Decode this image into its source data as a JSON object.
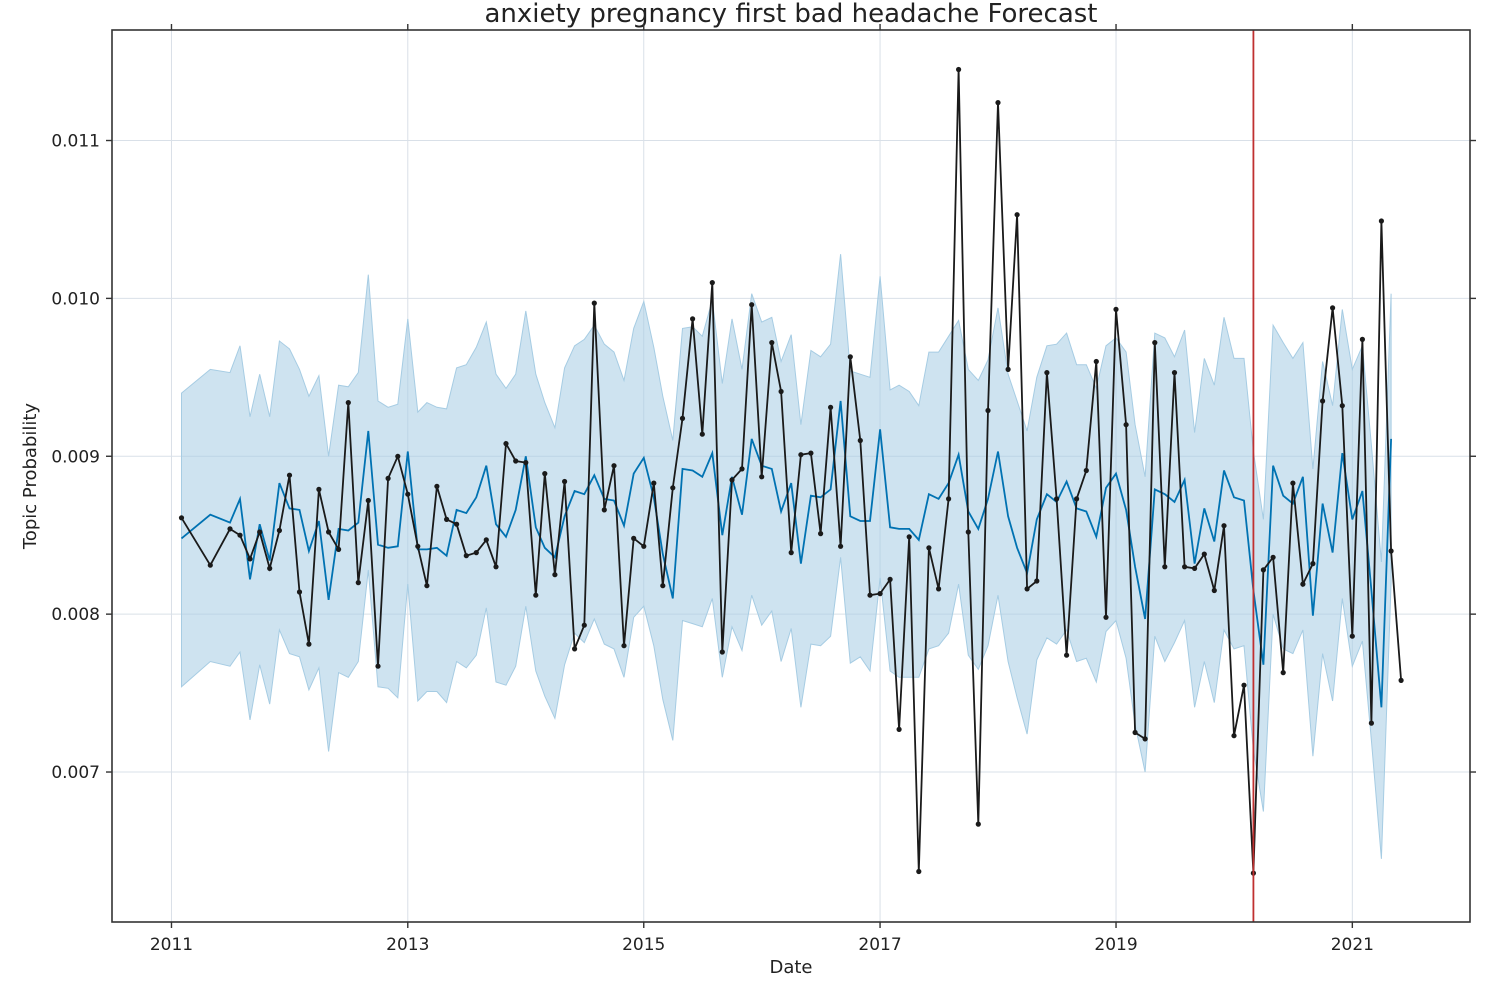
{
  "chart_data": {
    "type": "line",
    "title": "anxiety pregnancy first bad headache Forecast",
    "xlabel": "Date",
    "ylabel": "Topic Probability",
    "x_ticks": [
      "2011",
      "2013",
      "2015",
      "2017",
      "2019",
      "2021"
    ],
    "y_ticks": [
      "0.007",
      "0.008",
      "0.009",
      "0.010",
      "0.011"
    ],
    "xlim": [
      "2010-07-01",
      "2021-12-31"
    ],
    "ylim": [
      0.00605,
      0.0117
    ],
    "grid": true,
    "legend": "none",
    "colors": {
      "observed": "#1a1a1a",
      "forecast": "#0072b2",
      "interval": "#a6cce3",
      "changepoint": "#c03030",
      "grid": "#d9e0e8",
      "frame": "#333333"
    },
    "changepoint_date": "2020-03-01",
    "series": [
      {
        "role": "observed",
        "x": [
          "2011-02-01",
          "2011-05-01",
          "2011-07-01",
          "2011-08-01",
          "2011-09-01",
          "2011-10-01",
          "2011-11-01",
          "2011-12-01",
          "2012-01-01",
          "2012-02-01",
          "2012-03-01",
          "2012-04-01",
          "2012-05-01",
          "2012-06-01",
          "2012-07-01",
          "2012-08-01",
          "2012-09-01",
          "2012-10-01",
          "2012-11-01",
          "2012-12-01",
          "2013-01-01",
          "2013-02-01",
          "2013-03-01",
          "2013-04-01",
          "2013-05-01",
          "2013-06-01",
          "2013-07-01",
          "2013-08-01",
          "2013-09-01",
          "2013-10-01",
          "2013-11-01",
          "2013-12-01",
          "2014-01-01",
          "2014-02-01",
          "2014-03-01",
          "2014-04-01",
          "2014-05-01",
          "2014-06-01",
          "2014-07-01",
          "2014-08-01",
          "2014-09-01",
          "2014-10-01",
          "2014-11-01",
          "2014-12-01",
          "2015-01-01",
          "2015-02-01",
          "2015-03-01",
          "2015-04-01",
          "2015-05-01",
          "2015-06-01",
          "2015-07-01",
          "2015-08-01",
          "2015-09-01",
          "2015-10-01",
          "2015-11-01",
          "2015-12-01",
          "2016-01-01",
          "2016-02-01",
          "2016-03-01",
          "2016-04-01",
          "2016-05-01",
          "2016-06-01",
          "2016-07-01",
          "2016-08-01",
          "2016-09-01",
          "2016-10-01",
          "2016-11-01",
          "2016-12-01",
          "2017-01-01",
          "2017-02-01",
          "2017-03-01",
          "2017-04-01",
          "2017-05-01",
          "2017-06-01",
          "2017-07-01",
          "2017-08-01",
          "2017-09-01",
          "2017-10-01",
          "2017-11-01",
          "2017-12-01",
          "2018-01-01",
          "2018-02-01",
          "2018-03-01",
          "2018-04-01",
          "2018-05-01",
          "2018-06-01",
          "2018-07-01",
          "2018-08-01",
          "2018-09-01",
          "2018-10-01",
          "2018-11-01",
          "2018-12-01",
          "2019-01-01",
          "2019-02-01",
          "2019-03-01",
          "2019-04-01",
          "2019-05-01",
          "2019-06-01",
          "2019-07-01",
          "2019-08-01",
          "2019-09-01",
          "2019-10-01",
          "2019-11-01",
          "2019-12-01",
          "2020-01-01",
          "2020-02-01",
          "2020-03-01",
          "2020-04-01",
          "2020-05-01",
          "2020-06-01",
          "2020-07-01",
          "2020-08-01",
          "2020-09-01",
          "2020-10-01",
          "2020-11-01",
          "2020-12-01",
          "2021-01-01",
          "2021-02-01",
          "2021-03-01",
          "2021-04-01",
          "2021-05-01",
          "2021-06-01"
        ],
        "y": [
          0.00861,
          0.00831,
          0.00854,
          0.0085,
          0.00835,
          0.00852,
          0.00829,
          0.00853,
          0.00888,
          0.00814,
          0.00781,
          0.00879,
          0.00852,
          0.00841,
          0.00934,
          0.0082,
          0.00872,
          0.00767,
          0.00886,
          0.009,
          0.00876,
          0.00843,
          0.00818,
          0.00881,
          0.0086,
          0.00857,
          0.00837,
          0.00839,
          0.00847,
          0.0083,
          0.00908,
          0.00897,
          0.00896,
          0.00812,
          0.00889,
          0.00825,
          0.00884,
          0.00778,
          0.00793,
          0.00997,
          0.00866,
          0.00894,
          0.0078,
          0.00848,
          0.00843,
          0.00883,
          0.00818,
          0.0088,
          0.00924,
          0.00987,
          0.00914,
          0.0101,
          0.00776,
          0.00885,
          0.00892,
          0.00996,
          0.00887,
          0.00972,
          0.00941,
          0.00839,
          0.00901,
          0.00902,
          0.00851,
          0.00931,
          0.00843,
          0.00963,
          0.0091,
          0.00812,
          0.00813,
          0.00822,
          0.00727,
          0.00849,
          0.00637,
          0.00842,
          0.00816,
          0.00873,
          0.01145,
          0.00852,
          0.00667,
          0.00929,
          0.01124,
          0.00955,
          0.01053,
          0.00816,
          0.00821,
          0.00953,
          0.00873,
          0.00774,
          0.00873,
          0.00891,
          0.0096,
          0.00798,
          0.00993,
          0.0092,
          0.00725,
          0.00721,
          0.00972,
          0.0083,
          0.00953,
          0.0083,
          0.00829,
          0.00838,
          0.00815,
          0.00856,
          0.00723,
          0.00755,
          0.00636,
          0.00828,
          0.00836,
          0.00763,
          0.00883,
          0.00819,
          0.00832,
          0.00935,
          0.00994,
          0.00932,
          0.00786,
          0.00974,
          0.00731,
          0.01049,
          0.0084,
          0.00758
        ]
      },
      {
        "role": "forecast",
        "x": [
          "2011-02-01",
          "2011-05-01",
          "2011-07-01",
          "2011-08-01",
          "2011-09-01",
          "2011-10-01",
          "2011-11-01",
          "2011-12-01",
          "2012-01-01",
          "2012-02-01",
          "2012-03-01",
          "2012-04-01",
          "2012-05-01",
          "2012-06-01",
          "2012-07-01",
          "2012-08-01",
          "2012-09-01",
          "2012-10-01",
          "2012-11-01",
          "2012-12-01",
          "2013-01-01",
          "2013-02-01",
          "2013-03-01",
          "2013-04-01",
          "2013-05-01",
          "2013-06-01",
          "2013-07-01",
          "2013-08-01",
          "2013-09-01",
          "2013-10-01",
          "2013-11-01",
          "2013-12-01",
          "2014-01-01",
          "2014-02-01",
          "2014-03-01",
          "2014-04-01",
          "2014-05-01",
          "2014-06-01",
          "2014-07-01",
          "2014-08-01",
          "2014-09-01",
          "2014-10-01",
          "2014-11-01",
          "2014-12-01",
          "2015-01-01",
          "2015-02-01",
          "2015-03-01",
          "2015-04-01",
          "2015-05-01",
          "2015-06-01",
          "2015-07-01",
          "2015-08-01",
          "2015-09-01",
          "2015-10-01",
          "2015-11-01",
          "2015-12-01",
          "2016-01-01",
          "2016-02-01",
          "2016-03-01",
          "2016-04-01",
          "2016-05-01",
          "2016-06-01",
          "2016-07-01",
          "2016-08-01",
          "2016-09-01",
          "2016-10-01",
          "2016-11-01",
          "2016-12-01",
          "2017-01-01",
          "2017-02-01",
          "2017-03-01",
          "2017-04-01",
          "2017-05-01",
          "2017-06-01",
          "2017-07-01",
          "2017-08-01",
          "2017-09-01",
          "2017-10-01",
          "2017-11-01",
          "2017-12-01",
          "2018-01-01",
          "2018-02-01",
          "2018-03-01",
          "2018-04-01",
          "2018-05-01",
          "2018-06-01",
          "2018-07-01",
          "2018-08-01",
          "2018-09-01",
          "2018-10-01",
          "2018-11-01",
          "2018-12-01",
          "2019-01-01",
          "2019-02-01",
          "2019-03-01",
          "2019-04-01",
          "2019-05-01",
          "2019-06-01",
          "2019-07-01",
          "2019-08-01",
          "2019-09-01",
          "2019-10-01",
          "2019-11-01",
          "2019-12-01",
          "2020-01-01",
          "2020-02-01",
          "2020-03-01",
          "2020-04-01",
          "2020-05-01",
          "2020-06-01",
          "2020-07-01",
          "2020-08-01",
          "2020-09-01",
          "2020-10-01",
          "2020-11-01",
          "2020-12-01",
          "2021-01-01",
          "2021-02-01",
          "2021-03-01",
          "2021-04-01",
          "2021-05-01"
        ],
        "y": [
          0.00848,
          0.00863,
          0.00858,
          0.00873,
          0.00822,
          0.00857,
          0.00834,
          0.00883,
          0.00867,
          0.00866,
          0.0084,
          0.00859,
          0.00809,
          0.00854,
          0.00853,
          0.00858,
          0.00916,
          0.00844,
          0.00842,
          0.00843,
          0.00903,
          0.00841,
          0.00841,
          0.00842,
          0.00837,
          0.00866,
          0.00864,
          0.00874,
          0.00894,
          0.00857,
          0.00849,
          0.00866,
          0.009,
          0.00855,
          0.00842,
          0.00836,
          0.00862,
          0.00878,
          0.00876,
          0.00888,
          0.00873,
          0.00872,
          0.00856,
          0.00889,
          0.00899,
          0.00874,
          0.00838,
          0.0081,
          0.00892,
          0.00891,
          0.00887,
          0.00902,
          0.0085,
          0.00887,
          0.00863,
          0.00911,
          0.00894,
          0.00892,
          0.00865,
          0.00883,
          0.00832,
          0.00875,
          0.00874,
          0.00879,
          0.00935,
          0.00862,
          0.00859,
          0.00859,
          0.00917,
          0.00855,
          0.00854,
          0.00854,
          0.00847,
          0.00876,
          0.00873,
          0.00883,
          0.00901,
          0.00865,
          0.00854,
          0.00873,
          0.00903,
          0.00862,
          0.00842,
          0.00826,
          0.0086,
          0.00876,
          0.00871,
          0.00884,
          0.00867,
          0.00865,
          0.00849,
          0.0088,
          0.00889,
          0.00866,
          0.0083,
          0.00797,
          0.00879,
          0.00876,
          0.00871,
          0.00885,
          0.00832,
          0.00867,
          0.00846,
          0.00891,
          0.00874,
          0.00872,
          0.00815,
          0.00768,
          0.00894,
          0.00875,
          0.0087,
          0.00887,
          0.00799,
          0.0087,
          0.00839,
          0.00902,
          0.0086,
          0.00878,
          0.00815,
          0.00741,
          0.00911
        ]
      },
      {
        "role": "interval",
        "x": [
          "2011-02-01",
          "2011-05-01",
          "2011-07-01",
          "2011-08-01",
          "2011-09-01",
          "2011-10-01",
          "2011-11-01",
          "2011-12-01",
          "2012-01-01",
          "2012-02-01",
          "2012-03-01",
          "2012-04-01",
          "2012-05-01",
          "2012-06-01",
          "2012-07-01",
          "2012-08-01",
          "2012-09-01",
          "2012-10-01",
          "2012-11-01",
          "2012-12-01",
          "2013-01-01",
          "2013-02-01",
          "2013-03-01",
          "2013-04-01",
          "2013-05-01",
          "2013-06-01",
          "2013-07-01",
          "2013-08-01",
          "2013-09-01",
          "2013-10-01",
          "2013-11-01",
          "2013-12-01",
          "2014-01-01",
          "2014-02-01",
          "2014-03-01",
          "2014-04-01",
          "2014-05-01",
          "2014-06-01",
          "2014-07-01",
          "2014-08-01",
          "2014-09-01",
          "2014-10-01",
          "2014-11-01",
          "2014-12-01",
          "2015-01-01",
          "2015-02-01",
          "2015-03-01",
          "2015-04-01",
          "2015-05-01",
          "2015-06-01",
          "2015-07-01",
          "2015-08-01",
          "2015-09-01",
          "2015-10-01",
          "2015-11-01",
          "2015-12-01",
          "2016-01-01",
          "2016-02-01",
          "2016-03-01",
          "2016-04-01",
          "2016-05-01",
          "2016-06-01",
          "2016-07-01",
          "2016-08-01",
          "2016-09-01",
          "2016-10-01",
          "2016-11-01",
          "2016-12-01",
          "2017-01-01",
          "2017-02-01",
          "2017-03-01",
          "2017-04-01",
          "2017-05-01",
          "2017-06-01",
          "2017-07-01",
          "2017-08-01",
          "2017-09-01",
          "2017-10-01",
          "2017-11-01",
          "2017-12-01",
          "2018-01-01",
          "2018-02-01",
          "2018-03-01",
          "2018-04-01",
          "2018-05-01",
          "2018-06-01",
          "2018-07-01",
          "2018-08-01",
          "2018-09-01",
          "2018-10-01",
          "2018-11-01",
          "2018-12-01",
          "2019-01-01",
          "2019-02-01",
          "2019-03-01",
          "2019-04-01",
          "2019-05-01",
          "2019-06-01",
          "2019-07-01",
          "2019-08-01",
          "2019-09-01",
          "2019-10-01",
          "2019-11-01",
          "2019-12-01",
          "2020-01-01",
          "2020-02-01",
          "2020-03-01",
          "2020-04-01",
          "2020-05-01",
          "2020-06-01",
          "2020-07-01",
          "2020-08-01",
          "2020-09-01",
          "2020-10-01",
          "2020-11-01",
          "2020-12-01",
          "2021-01-01",
          "2021-02-01",
          "2021-03-01",
          "2021-04-01",
          "2021-05-01"
        ],
        "upper": [
          0.0094,
          0.00955,
          0.00953,
          0.0097,
          0.00925,
          0.00952,
          0.00925,
          0.00973,
          0.00968,
          0.00955,
          0.00938,
          0.00951,
          0.009,
          0.00945,
          0.00944,
          0.00953,
          0.01015,
          0.00935,
          0.00931,
          0.00933,
          0.00987,
          0.00928,
          0.00934,
          0.00931,
          0.0093,
          0.00956,
          0.00958,
          0.00969,
          0.00985,
          0.00952,
          0.00943,
          0.00952,
          0.00992,
          0.00952,
          0.00934,
          0.00918,
          0.00956,
          0.0097,
          0.00974,
          0.00983,
          0.00971,
          0.00966,
          0.00948,
          0.00981,
          0.00998,
          0.00969,
          0.00938,
          0.0091,
          0.00981,
          0.00982,
          0.00976,
          0.00999,
          0.00946,
          0.00987,
          0.00955,
          0.01003,
          0.00985,
          0.00988,
          0.0096,
          0.00977,
          0.0092,
          0.00967,
          0.00963,
          0.00971,
          0.01028,
          0.00954,
          0.00952,
          0.0095,
          0.01014,
          0.00942,
          0.00945,
          0.00941,
          0.00932,
          0.00966,
          0.00966,
          0.00976,
          0.00986,
          0.00955,
          0.00948,
          0.00961,
          0.00994,
          0.00952,
          0.00935,
          0.00916,
          0.0095,
          0.0097,
          0.00971,
          0.00978,
          0.00958,
          0.00958,
          0.00943,
          0.0097,
          0.00975,
          0.00966,
          0.0092,
          0.00887,
          0.00978,
          0.00975,
          0.00963,
          0.0098,
          0.00915,
          0.00962,
          0.00945,
          0.00988,
          0.00962,
          0.00962,
          0.00903,
          0.0086,
          0.00983,
          0.00972,
          0.00962,
          0.00972,
          0.00892,
          0.0096,
          0.00932,
          0.00993,
          0.00955,
          0.0097,
          0.00907,
          0.00833,
          0.01003
        ],
        "lower": [
          0.00754,
          0.0077,
          0.00767,
          0.00776,
          0.00733,
          0.00768,
          0.00743,
          0.0079,
          0.00775,
          0.00773,
          0.00752,
          0.00766,
          0.00713,
          0.00763,
          0.0076,
          0.0077,
          0.00828,
          0.00754,
          0.00753,
          0.00747,
          0.00819,
          0.00745,
          0.00751,
          0.00751,
          0.00744,
          0.0077,
          0.00766,
          0.00774,
          0.00804,
          0.00757,
          0.00755,
          0.00767,
          0.00805,
          0.00764,
          0.00748,
          0.00734,
          0.00768,
          0.00788,
          0.00782,
          0.00797,
          0.00781,
          0.00778,
          0.0076,
          0.00798,
          0.00805,
          0.0078,
          0.00746,
          0.0072,
          0.00796,
          0.00794,
          0.00792,
          0.0081,
          0.0076,
          0.00792,
          0.00777,
          0.00812,
          0.00793,
          0.00802,
          0.0077,
          0.00791,
          0.00741,
          0.00781,
          0.0078,
          0.00786,
          0.00836,
          0.00769,
          0.00773,
          0.00764,
          0.00823,
          0.00764,
          0.0076,
          0.0076,
          0.0076,
          0.00778,
          0.0078,
          0.00788,
          0.00819,
          0.00774,
          0.00765,
          0.0078,
          0.00812,
          0.0077,
          0.00747,
          0.00724,
          0.00771,
          0.00785,
          0.00781,
          0.0079,
          0.0077,
          0.00772,
          0.00757,
          0.00789,
          0.00796,
          0.00772,
          0.0073,
          0.007,
          0.00786,
          0.0077,
          0.00782,
          0.00796,
          0.00741,
          0.0077,
          0.00744,
          0.0079,
          0.00778,
          0.0078,
          0.00714,
          0.00675,
          0.008,
          0.00778,
          0.00775,
          0.0079,
          0.0071,
          0.00775,
          0.00745,
          0.0081,
          0.00767,
          0.00783,
          0.0072,
          0.00645,
          0.0082
        ]
      }
    ]
  }
}
